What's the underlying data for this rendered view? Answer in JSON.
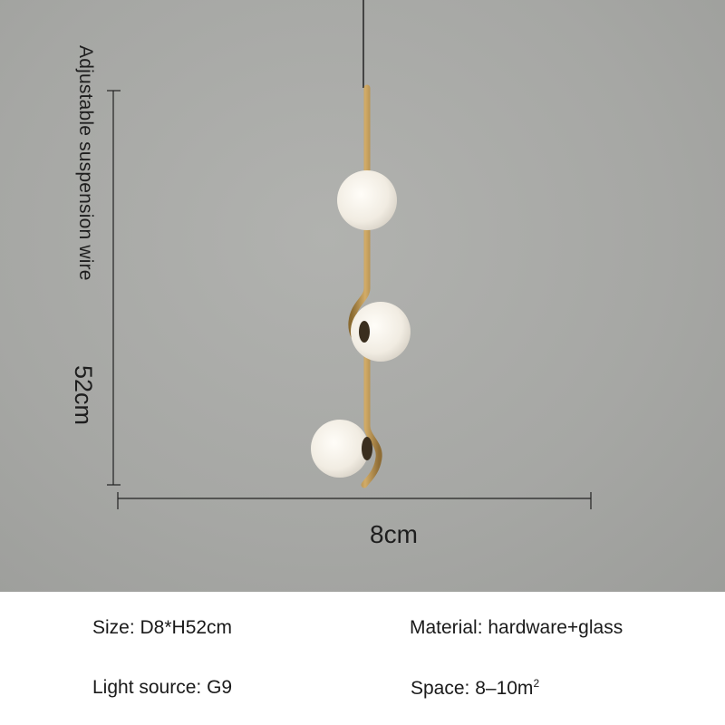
{
  "dimensions": {
    "wire_label": "Adjustable suspension wire",
    "height_label": "52cm",
    "width_label": "8cm"
  },
  "specs": {
    "size": "Size: D8*H52cm",
    "material": "Material: hardware+glass",
    "light_source": "Light source: G9",
    "space": "Space: 8–10m",
    "space_unit_sup": "2"
  },
  "colors": {
    "background": "#a8a9a6",
    "brass": "#b8904a",
    "glass": "#f4f0e8"
  }
}
